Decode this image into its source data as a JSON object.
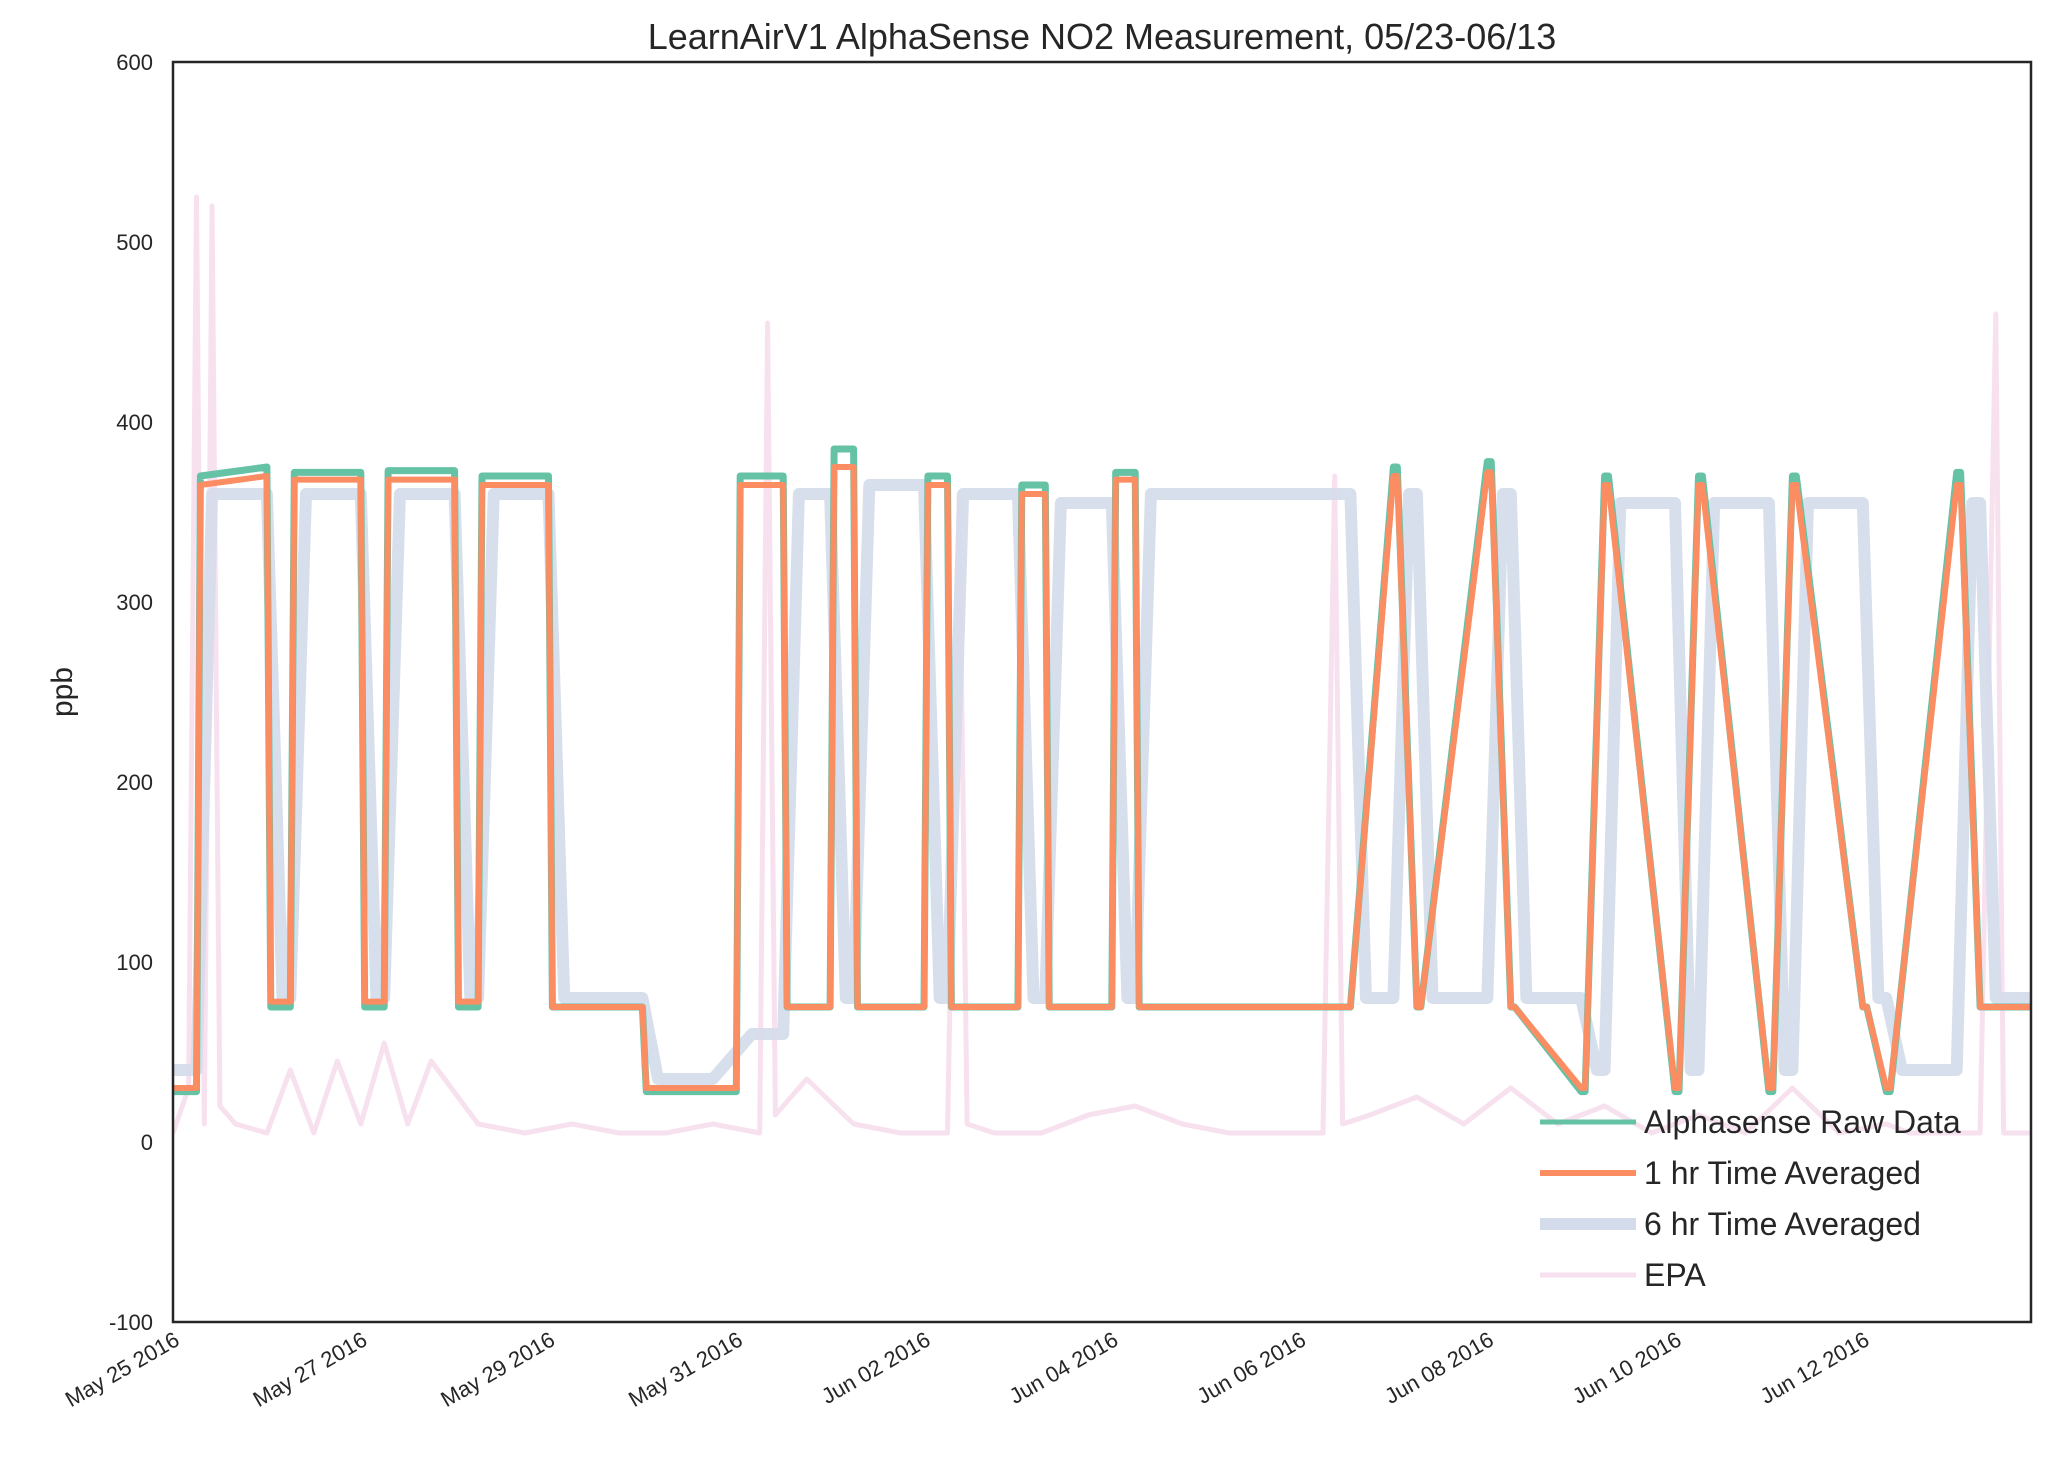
{
  "chart_data": {
    "type": "line",
    "title": "LearnAirV1 AlphaSense NO2 Measurement, 05/23-06/13",
    "xlabel": "",
    "ylabel": "ppb",
    "ylim": [
      -100,
      600
    ],
    "yticks": [
      -100,
      0,
      100,
      200,
      300,
      400,
      500,
      600
    ],
    "xlim": [
      "2016-05-25",
      "2016-06-13T19:00"
    ],
    "xticks": [
      "2016-05-25",
      "2016-05-27",
      "2016-05-29",
      "2016-05-31",
      "2016-06-02",
      "2016-06-04",
      "2016-06-06",
      "2016-06-08",
      "2016-06-10",
      "2016-06-12"
    ],
    "xtick_labels": [
      "May 25 2016",
      "May 27 2016",
      "May 29 2016",
      "May 31 2016",
      "Jun 02 2016",
      "Jun 04 2016",
      "Jun 06 2016",
      "Jun 08 2016",
      "Jun 10 2016",
      "Jun 12 2016"
    ],
    "grid": false,
    "legend_position": "lower-right",
    "series": [
      {
        "name": "Alphasense Raw Data",
        "color": "#66c2a5",
        "x": [
          "2016-05-25T00:00",
          "2016-05-25T06:00",
          "2016-05-25T07:00",
          "2016-05-26T00:00",
          "2016-05-26T01:00",
          "2016-05-26T06:00",
          "2016-05-26T07:00",
          "2016-05-27T00:00",
          "2016-05-27T01:00",
          "2016-05-27T06:00",
          "2016-05-27T07:00",
          "2016-05-28T00:00",
          "2016-05-28T01:00",
          "2016-05-28T06:00",
          "2016-05-28T07:00",
          "2016-05-29T00:00",
          "2016-05-29T01:00",
          "2016-05-29T12:00",
          "2016-05-30T00:00",
          "2016-05-30T01:00",
          "2016-05-30T18:00",
          "2016-05-31T00:00",
          "2016-05-31T01:00",
          "2016-05-31T12:00",
          "2016-05-31T13:00",
          "2016-06-01T00:00",
          "2016-06-01T01:00",
          "2016-06-01T06:00",
          "2016-06-01T07:00",
          "2016-06-02T00:00",
          "2016-06-02T01:00",
          "2016-06-02T06:00",
          "2016-06-02T07:00",
          "2016-06-03T00:00",
          "2016-06-03T01:00",
          "2016-06-03T07:00",
          "2016-06-03T08:00",
          "2016-06-04T00:00",
          "2016-06-04T01:00",
          "2016-06-04T06:00",
          "2016-06-04T07:00",
          "2016-06-05T00:00",
          "2016-06-06T12:00",
          "2016-06-06T13:00",
          "2016-06-07T00:00",
          "2016-06-07T01:00",
          "2016-06-07T06:00",
          "2016-06-07T07:00",
          "2016-06-08T00:00",
          "2016-06-08T01:00",
          "2016-06-08T06:00",
          "2016-06-08T07:00",
          "2016-06-09T00:00",
          "2016-06-09T01:00",
          "2016-06-09T06:00",
          "2016-06-09T07:00",
          "2016-06-10T00:00",
          "2016-06-10T01:00",
          "2016-06-10T06:00",
          "2016-06-10T07:00",
          "2016-06-11T00:00",
          "2016-06-11T01:00",
          "2016-06-11T06:00",
          "2016-06-11T07:00",
          "2016-06-12T00:00",
          "2016-06-12T01:00",
          "2016-06-12T06:00",
          "2016-06-12T07:00",
          "2016-06-13T00:00",
          "2016-06-13T01:00",
          "2016-06-13T06:00",
          "2016-06-13T07:00",
          "2016-06-13T19:00"
        ],
        "y": [
          28,
          28,
          370,
          375,
          75,
          75,
          372,
          372,
          75,
          75,
          373,
          373,
          75,
          75,
          370,
          370,
          75,
          75,
          75,
          28,
          28,
          28,
          370,
          370,
          75,
          75,
          385,
          385,
          75,
          75,
          370,
          370,
          75,
          75,
          365,
          365,
          75,
          75,
          372,
          372,
          75,
          75,
          75,
          75,
          375,
          375,
          75,
          75,
          378,
          378,
          75,
          75,
          28,
          28,
          370,
          370,
          28,
          28,
          370,
          370,
          28,
          28,
          370,
          370,
          75,
          75,
          28,
          28,
          372,
          372,
          75,
          75,
          75
        ]
      },
      {
        "name": "1 hr Time Averaged",
        "color": "#fc8d62",
        "x": [
          "2016-05-25T00:00",
          "2016-05-25T06:00",
          "2016-05-25T07:00",
          "2016-05-26T00:00",
          "2016-05-26T01:00",
          "2016-05-26T06:00",
          "2016-05-26T07:00",
          "2016-05-27T00:00",
          "2016-05-27T01:00",
          "2016-05-27T06:00",
          "2016-05-27T07:00",
          "2016-05-28T00:00",
          "2016-05-28T01:00",
          "2016-05-28T06:00",
          "2016-05-28T07:00",
          "2016-05-29T00:00",
          "2016-05-29T01:00",
          "2016-05-30T00:00",
          "2016-05-30T01:00",
          "2016-05-30T18:00",
          "2016-05-31T00:00",
          "2016-05-31T01:00",
          "2016-05-31T12:00",
          "2016-05-31T13:00",
          "2016-06-01T00:00",
          "2016-06-01T01:00",
          "2016-06-01T06:00",
          "2016-06-01T07:00",
          "2016-06-02T00:00",
          "2016-06-02T01:00",
          "2016-06-02T06:00",
          "2016-06-02T07:00",
          "2016-06-03T00:00",
          "2016-06-03T01:00",
          "2016-06-03T07:00",
          "2016-06-03T08:00",
          "2016-06-04T00:00",
          "2016-06-04T01:00",
          "2016-06-04T06:00",
          "2016-06-04T07:00",
          "2016-06-06T13:00",
          "2016-06-07T00:00",
          "2016-06-07T01:00",
          "2016-06-07T06:00",
          "2016-06-07T07:00",
          "2016-06-08T00:00",
          "2016-06-08T01:00",
          "2016-06-08T06:00",
          "2016-06-08T07:00",
          "2016-06-09T00:00",
          "2016-06-09T01:00",
          "2016-06-09T06:00",
          "2016-06-09T07:00",
          "2016-06-10T00:00",
          "2016-06-10T01:00",
          "2016-06-10T06:00",
          "2016-06-10T07:00",
          "2016-06-11T00:00",
          "2016-06-11T01:00",
          "2016-06-11T06:00",
          "2016-06-11T07:00",
          "2016-06-12T00:00",
          "2016-06-12T01:00",
          "2016-06-12T06:00",
          "2016-06-12T07:00",
          "2016-06-13T00:00",
          "2016-06-13T01:00",
          "2016-06-13T06:00",
          "2016-06-13T07:00",
          "2016-06-13T19:00"
        ],
        "y": [
          30,
          30,
          365,
          370,
          78,
          78,
          368,
          368,
          78,
          78,
          368,
          368,
          78,
          78,
          365,
          365,
          75,
          75,
          30,
          30,
          30,
          365,
          365,
          75,
          75,
          375,
          375,
          75,
          75,
          365,
          365,
          75,
          75,
          360,
          360,
          75,
          75,
          368,
          368,
          75,
          75,
          370,
          370,
          75,
          75,
          372,
          372,
          75,
          75,
          30,
          30,
          365,
          365,
          30,
          30,
          365,
          365,
          30,
          30,
          365,
          365,
          75,
          75,
          30,
          30,
          365,
          365,
          75,
          75,
          75
        ]
      },
      {
        "name": "6 hr Time Averaged",
        "color": "#d4dbea",
        "x": [
          "2016-05-25T00:00",
          "2016-05-25T06:00",
          "2016-05-25T10:00",
          "2016-05-26T00:00",
          "2016-05-26T04:00",
          "2016-05-26T06:00",
          "2016-05-26T10:00",
          "2016-05-27T00:00",
          "2016-05-27T04:00",
          "2016-05-27T06:00",
          "2016-05-27T10:00",
          "2016-05-28T00:00",
          "2016-05-28T04:00",
          "2016-05-28T06:00",
          "2016-05-28T10:00",
          "2016-05-29T00:00",
          "2016-05-29T04:00",
          "2016-05-30T00:00",
          "2016-05-30T04:00",
          "2016-05-30T18:00",
          "2016-05-31T04:00",
          "2016-05-31T12:00",
          "2016-05-31T16:00",
          "2016-06-01T00:00",
          "2016-06-01T04:00",
          "2016-06-01T06:00",
          "2016-06-01T10:00",
          "2016-06-02T00:00",
          "2016-06-02T04:00",
          "2016-06-02T06:00",
          "2016-06-02T10:00",
          "2016-06-03T00:00",
          "2016-06-03T04:00",
          "2016-06-03T07:00",
          "2016-06-03T11:00",
          "2016-06-04T00:00",
          "2016-06-04T04:00",
          "2016-06-04T06:00",
          "2016-06-04T10:00",
          "2016-06-06T13:00",
          "2016-06-06T17:00",
          "2016-06-07T00:00",
          "2016-06-07T04:00",
          "2016-06-07T06:00",
          "2016-06-07T10:00",
          "2016-06-08T00:00",
          "2016-06-08T04:00",
          "2016-06-08T06:00",
          "2016-06-08T10:00",
          "2016-06-09T00:00",
          "2016-06-09T04:00",
          "2016-06-09T06:00",
          "2016-06-09T10:00",
          "2016-06-10T00:00",
          "2016-06-10T04:00",
          "2016-06-10T06:00",
          "2016-06-10T10:00",
          "2016-06-11T00:00",
          "2016-06-11T04:00",
          "2016-06-11T06:00",
          "2016-06-11T10:00",
          "2016-06-12T00:00",
          "2016-06-12T04:00",
          "2016-06-12T06:00",
          "2016-06-12T10:00",
          "2016-06-13T00:00",
          "2016-06-13T04:00",
          "2016-06-13T06:00",
          "2016-06-13T10:00",
          "2016-06-13T19:00"
        ],
        "y": [
          40,
          40,
          360,
          360,
          80,
          80,
          360,
          360,
          80,
          80,
          360,
          360,
          80,
          80,
          360,
          360,
          80,
          80,
          35,
          35,
          60,
          60,
          360,
          360,
          80,
          80,
          365,
          365,
          80,
          80,
          360,
          360,
          80,
          80,
          355,
          355,
          80,
          80,
          360,
          360,
          80,
          80,
          360,
          360,
          80,
          80,
          360,
          360,
          80,
          80,
          40,
          40,
          355,
          355,
          40,
          40,
          355,
          355,
          40,
          40,
          355,
          355,
          80,
          80,
          40,
          40,
          355,
          355,
          80,
          80
        ]
      },
      {
        "name": "EPA",
        "color": "#f7e1ef",
        "x": [
          "2016-05-25T00:00",
          "2016-05-25T04:00",
          "2016-05-25T06:00",
          "2016-05-25T08:00",
          "2016-05-25T10:00",
          "2016-05-25T12:00",
          "2016-05-25T16:00",
          "2016-05-26T00:00",
          "2016-05-26T06:00",
          "2016-05-26T12:00",
          "2016-05-26T18:00",
          "2016-05-27T00:00",
          "2016-05-27T06:00",
          "2016-05-27T12:00",
          "2016-05-27T18:00",
          "2016-05-28T06:00",
          "2016-05-28T18:00",
          "2016-05-29T06:00",
          "2016-05-29T18:00",
          "2016-05-30T06:00",
          "2016-05-30T18:00",
          "2016-05-31T06:00",
          "2016-05-31T08:00",
          "2016-05-31T10:00",
          "2016-05-31T18:00",
          "2016-06-01T06:00",
          "2016-06-01T18:00",
          "2016-06-02T06:00",
          "2016-06-02T09:00",
          "2016-06-02T11:00",
          "2016-06-02T18:00",
          "2016-06-03T06:00",
          "2016-06-03T18:00",
          "2016-06-04T06:00",
          "2016-06-04T18:00",
          "2016-06-05T06:00",
          "2016-06-05T18:00",
          "2016-06-06T06:00",
          "2016-06-06T09:00",
          "2016-06-06T11:00",
          "2016-06-06T18:00",
          "2016-06-07T06:00",
          "2016-06-07T18:00",
          "2016-06-08T06:00",
          "2016-06-08T18:00",
          "2016-06-09T06:00",
          "2016-06-09T18:00",
          "2016-06-10T06:00",
          "2016-06-10T18:00",
          "2016-06-11T06:00",
          "2016-06-11T18:00",
          "2016-06-12T06:00",
          "2016-06-12T12:00",
          "2016-06-12T18:00",
          "2016-06-13T06:00",
          "2016-06-13T10:00",
          "2016-06-13T12:00",
          "2016-06-13T19:00"
        ],
        "y": [
          5,
          30,
          525,
          10,
          520,
          20,
          10,
          5,
          40,
          5,
          45,
          10,
          55,
          10,
          45,
          10,
          5,
          10,
          5,
          5,
          10,
          5,
          455,
          15,
          35,
          10,
          5,
          5,
          360,
          10,
          5,
          5,
          15,
          20,
          10,
          5,
          5,
          5,
          370,
          10,
          15,
          25,
          10,
          30,
          10,
          20,
          5,
          15,
          5,
          30,
          5,
          10,
          5,
          5,
          5,
          460,
          5,
          5
        ]
      }
    ]
  }
}
